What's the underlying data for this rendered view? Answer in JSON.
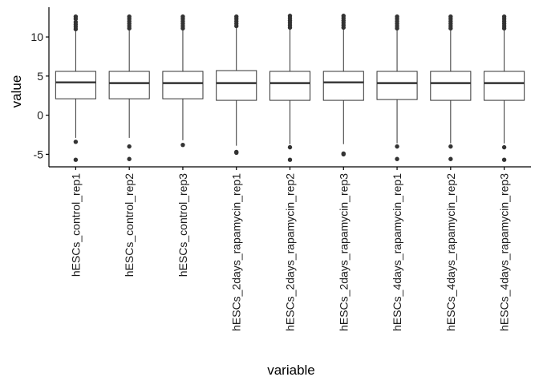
{
  "chart_data": {
    "type": "boxplot",
    "xlabel": "variable",
    "ylabel": "value",
    "ylim": [
      -6.6,
      13.8
    ],
    "y_ticks": [
      -5,
      0,
      5,
      10
    ],
    "grid": false,
    "legend": "none",
    "colors": {
      "box_fill": "#ffffff",
      "line": "#333333",
      "outlier": "#333333",
      "axis": "#000000"
    },
    "categories": [
      "hESCs_control_rep1",
      "hESCs_control_rep2",
      "hESCs_control_rep3",
      "hESCs_2days_rapamycin_rep1",
      "hESCs_2days_rapamycin_rep2",
      "hESCs_2days_rapamycin_rep3",
      "hESCs_4days_rapamycin_rep1",
      "hESCs_4days_rapamycin_rep2",
      "hESCs_4days_rapamycin_rep3"
    ],
    "boxes": [
      {
        "whisker_low": -2.9,
        "q1": 2.1,
        "median": 4.2,
        "q3": 5.6,
        "whisker_high": 10.8,
        "outliers_low": [
          -3.4,
          -5.7
        ],
        "outliers_high": [
          11.0,
          11.3,
          11.6,
          11.9,
          12.3,
          12.6
        ]
      },
      {
        "whisker_low": -2.9,
        "q1": 2.1,
        "median": 4.1,
        "q3": 5.6,
        "whisker_high": 10.9,
        "outliers_low": [
          -4.0,
          -5.6
        ],
        "outliers_high": [
          11.1,
          11.4,
          11.7,
          12.0,
          12.3,
          12.6
        ]
      },
      {
        "whisker_low": -3.2,
        "q1": 2.1,
        "median": 4.1,
        "q3": 5.6,
        "whisker_high": 10.9,
        "outliers_low": [
          -3.8
        ],
        "outliers_high": [
          11.1,
          11.4,
          11.7,
          12.0,
          12.3,
          12.6
        ]
      },
      {
        "whisker_low": -3.9,
        "q1": 1.9,
        "median": 4.1,
        "q3": 5.7,
        "whisker_high": 11.2,
        "outliers_low": [
          -4.7,
          -4.8
        ],
        "outliers_high": [
          11.4,
          11.7,
          12.0,
          12.3,
          12.6
        ]
      },
      {
        "whisker_low": -3.7,
        "q1": 1.9,
        "median": 4.1,
        "q3": 5.6,
        "whisker_high": 11.0,
        "outliers_low": [
          -4.1,
          -5.7
        ],
        "outliers_high": [
          11.2,
          11.5,
          11.8,
          12.1,
          12.4,
          12.7
        ]
      },
      {
        "whisker_low": -3.7,
        "q1": 1.9,
        "median": 4.2,
        "q3": 5.6,
        "whisker_high": 11.0,
        "outliers_low": [
          -4.9,
          -5.0
        ],
        "outliers_high": [
          11.2,
          11.5,
          11.8,
          12.1,
          12.4,
          12.7
        ]
      },
      {
        "whisker_low": -3.6,
        "q1": 2.0,
        "median": 4.1,
        "q3": 5.6,
        "whisker_high": 10.9,
        "outliers_low": [
          -4.0,
          -5.6
        ],
        "outliers_high": [
          11.1,
          11.4,
          11.7,
          12.0,
          12.3,
          12.6
        ]
      },
      {
        "whisker_low": -3.6,
        "q1": 1.9,
        "median": 4.1,
        "q3": 5.6,
        "whisker_high": 10.9,
        "outliers_low": [
          -4.0,
          -5.6
        ],
        "outliers_high": [
          11.1,
          11.4,
          11.7,
          12.0,
          12.3,
          12.6
        ]
      },
      {
        "whisker_low": -3.6,
        "q1": 1.9,
        "median": 4.1,
        "q3": 5.6,
        "whisker_high": 10.9,
        "outliers_low": [
          -4.1,
          -5.7
        ],
        "outliers_high": [
          11.1,
          11.4,
          11.7,
          12.0,
          12.3,
          12.6
        ]
      }
    ]
  }
}
